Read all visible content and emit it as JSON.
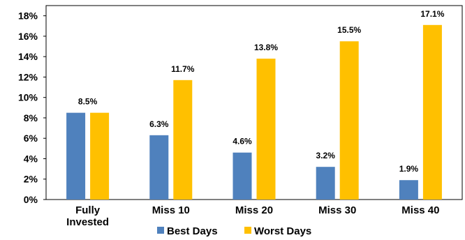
{
  "chart_data": {
    "type": "bar",
    "categories": [
      [
        "Fully",
        "Invested"
      ],
      [
        "Miss 10"
      ],
      [
        "Miss 20"
      ],
      [
        "Miss 30"
      ],
      [
        "Miss 40"
      ]
    ],
    "series": [
      {
        "name": "Best Days",
        "color": "#4f81bd",
        "values": [
          8.5,
          6.3,
          4.6,
          3.2,
          1.9
        ],
        "data_labels": [
          "8.5%",
          "6.3%",
          "4.6%",
          "3.2%",
          "1.9%"
        ]
      },
      {
        "name": "Worst Days",
        "color": "#ffc000",
        "values": [
          8.5,
          11.7,
          13.8,
          15.5,
          17.1
        ],
        "data_labels": [
          "",
          "11.7%",
          "13.8%",
          "15.5%",
          "17.1%"
        ]
      }
    ],
    "y_ticks": [
      "0%",
      "2%",
      "4%",
      "6%",
      "8%",
      "10%",
      "12%",
      "14%",
      "16%",
      "18%"
    ],
    "y_tick_values": [
      0,
      2,
      4,
      6,
      8,
      10,
      12,
      14,
      16,
      18
    ],
    "ylim": [
      0,
      19
    ],
    "grid": false,
    "legend": "bottom",
    "title": "",
    "xlabel": "",
    "ylabel": ""
  }
}
